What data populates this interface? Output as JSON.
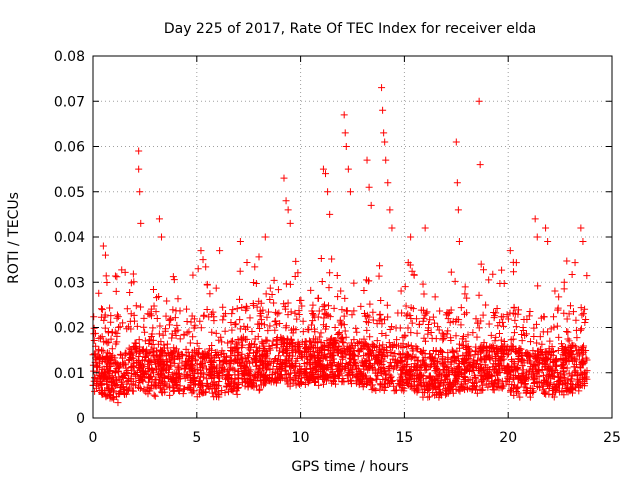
{
  "chart_data": {
    "type": "scatter",
    "title": "Day 225 of 2017, Rate Of TEC Index for receiver elda",
    "xlabel": "GPS time / hours",
    "ylabel": "ROTI / TECUs",
    "xlim": [
      0,
      25
    ],
    "ylim": [
      0,
      0.08
    ],
    "xticks": [
      0,
      5,
      10,
      15,
      20,
      25
    ],
    "yticks": [
      0,
      0.01,
      0.02,
      0.03,
      0.04,
      0.05,
      0.06,
      0.07,
      0.08
    ],
    "xtick_labels": [
      "0",
      "5",
      "10",
      "15",
      "20",
      "25"
    ],
    "ytick_labels": [
      "0",
      "0.01",
      "0.02",
      "0.03",
      "0.04",
      "0.05",
      "0.06",
      "0.07",
      "0.08"
    ],
    "grid": true,
    "marker": "+",
    "series": [
      {
        "name": "ROTI",
        "color": "#ff0000",
        "band_center": [
          [
            0.0,
            0.011
          ],
          [
            1.0,
            0.009
          ],
          [
            2.0,
            0.011
          ],
          [
            3.0,
            0.01
          ],
          [
            4.0,
            0.011
          ],
          [
            5.0,
            0.01
          ],
          [
            6.0,
            0.01
          ],
          [
            7.0,
            0.011
          ],
          [
            8.0,
            0.012
          ],
          [
            9.0,
            0.013
          ],
          [
            10.0,
            0.012
          ],
          [
            11.0,
            0.013
          ],
          [
            12.0,
            0.013
          ],
          [
            13.0,
            0.012
          ],
          [
            14.0,
            0.011
          ],
          [
            15.0,
            0.011
          ],
          [
            16.0,
            0.01
          ],
          [
            17.0,
            0.01
          ],
          [
            18.0,
            0.011
          ],
          [
            19.0,
            0.011
          ],
          [
            20.0,
            0.011
          ],
          [
            21.0,
            0.01
          ],
          [
            22.0,
            0.01
          ],
          [
            23.0,
            0.011
          ],
          [
            23.8,
            0.011
          ]
        ],
        "outliers": [
          [
            0.5,
            0.038
          ],
          [
            0.6,
            0.036
          ],
          [
            2.2,
            0.059
          ],
          [
            2.2,
            0.055
          ],
          [
            2.25,
            0.05
          ],
          [
            2.3,
            0.043
          ],
          [
            3.2,
            0.044
          ],
          [
            3.3,
            0.04
          ],
          [
            5.2,
            0.037
          ],
          [
            5.3,
            0.035
          ],
          [
            6.1,
            0.037
          ],
          [
            7.1,
            0.039
          ],
          [
            8.3,
            0.04
          ],
          [
            9.2,
            0.053
          ],
          [
            9.3,
            0.048
          ],
          [
            9.4,
            0.046
          ],
          [
            9.5,
            0.043
          ],
          [
            11.1,
            0.055
          ],
          [
            11.2,
            0.054
          ],
          [
            11.3,
            0.05
          ],
          [
            11.4,
            0.045
          ],
          [
            12.1,
            0.067
          ],
          [
            12.15,
            0.063
          ],
          [
            12.2,
            0.06
          ],
          [
            12.3,
            0.055
          ],
          [
            12.4,
            0.05
          ],
          [
            13.2,
            0.057
          ],
          [
            13.3,
            0.051
          ],
          [
            13.4,
            0.047
          ],
          [
            13.9,
            0.073
          ],
          [
            13.95,
            0.068
          ],
          [
            14.0,
            0.063
          ],
          [
            14.05,
            0.061
          ],
          [
            14.1,
            0.057
          ],
          [
            14.2,
            0.052
          ],
          [
            14.3,
            0.046
          ],
          [
            14.4,
            0.042
          ],
          [
            15.3,
            0.04
          ],
          [
            16.0,
            0.042
          ],
          [
            17.5,
            0.061
          ],
          [
            17.55,
            0.052
          ],
          [
            17.6,
            0.046
          ],
          [
            17.65,
            0.039
          ],
          [
            18.6,
            0.07
          ],
          [
            18.65,
            0.056
          ],
          [
            18.7,
            0.034
          ],
          [
            20.1,
            0.037
          ],
          [
            21.3,
            0.044
          ],
          [
            21.4,
            0.04
          ],
          [
            21.8,
            0.042
          ],
          [
            21.9,
            0.039
          ],
          [
            22.7,
            0.03
          ],
          [
            23.5,
            0.042
          ],
          [
            23.6,
            0.039
          ]
        ]
      }
    ]
  }
}
